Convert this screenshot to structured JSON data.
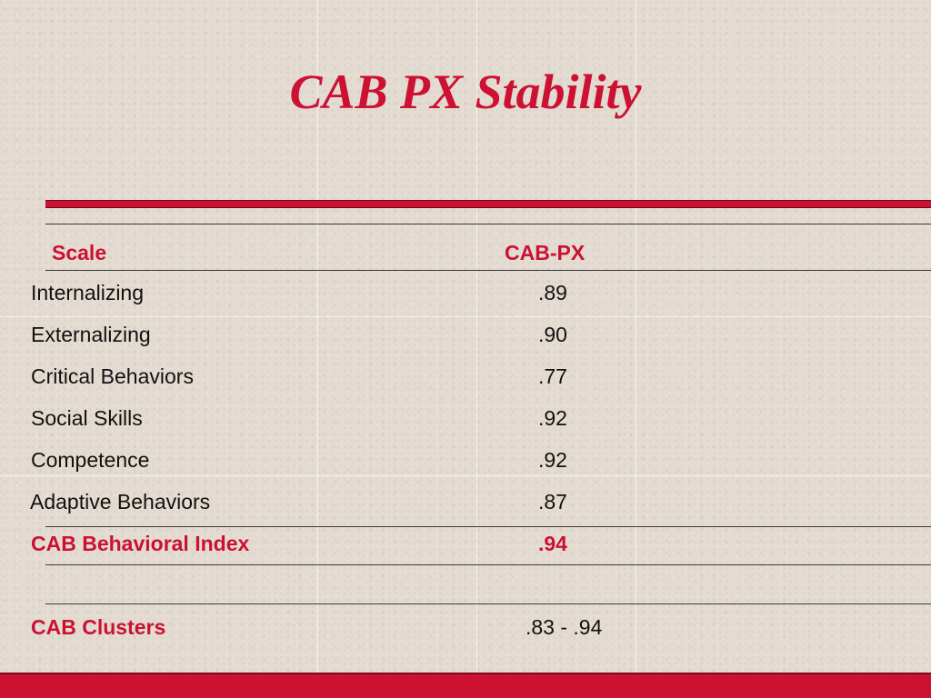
{
  "slide": {
    "title": "CAB PX Stability"
  },
  "table": {
    "headers": {
      "scale": "Scale",
      "value": "CAB-PX"
    },
    "rows": [
      {
        "scale": "Internalizing",
        "value": ".89"
      },
      {
        "scale": "Externalizing",
        "value": ".90"
      },
      {
        "scale": "Critical Behaviors",
        "value": ".77"
      },
      {
        "scale": "Social Skills",
        "value": ".92"
      },
      {
        "scale": "Competence",
        "value": ".92"
      },
      {
        "scale": "Adaptive Behaviors",
        "value": ".87"
      }
    ],
    "index_row": {
      "scale": "CAB Behavioral Index",
      "value": ".94"
    },
    "clusters_row": {
      "scale": "CAB Clusters",
      "value": ".83 - .94"
    }
  },
  "colors": {
    "accent": "#cc1133",
    "background": "#e4dcd2",
    "text": "#111111"
  }
}
